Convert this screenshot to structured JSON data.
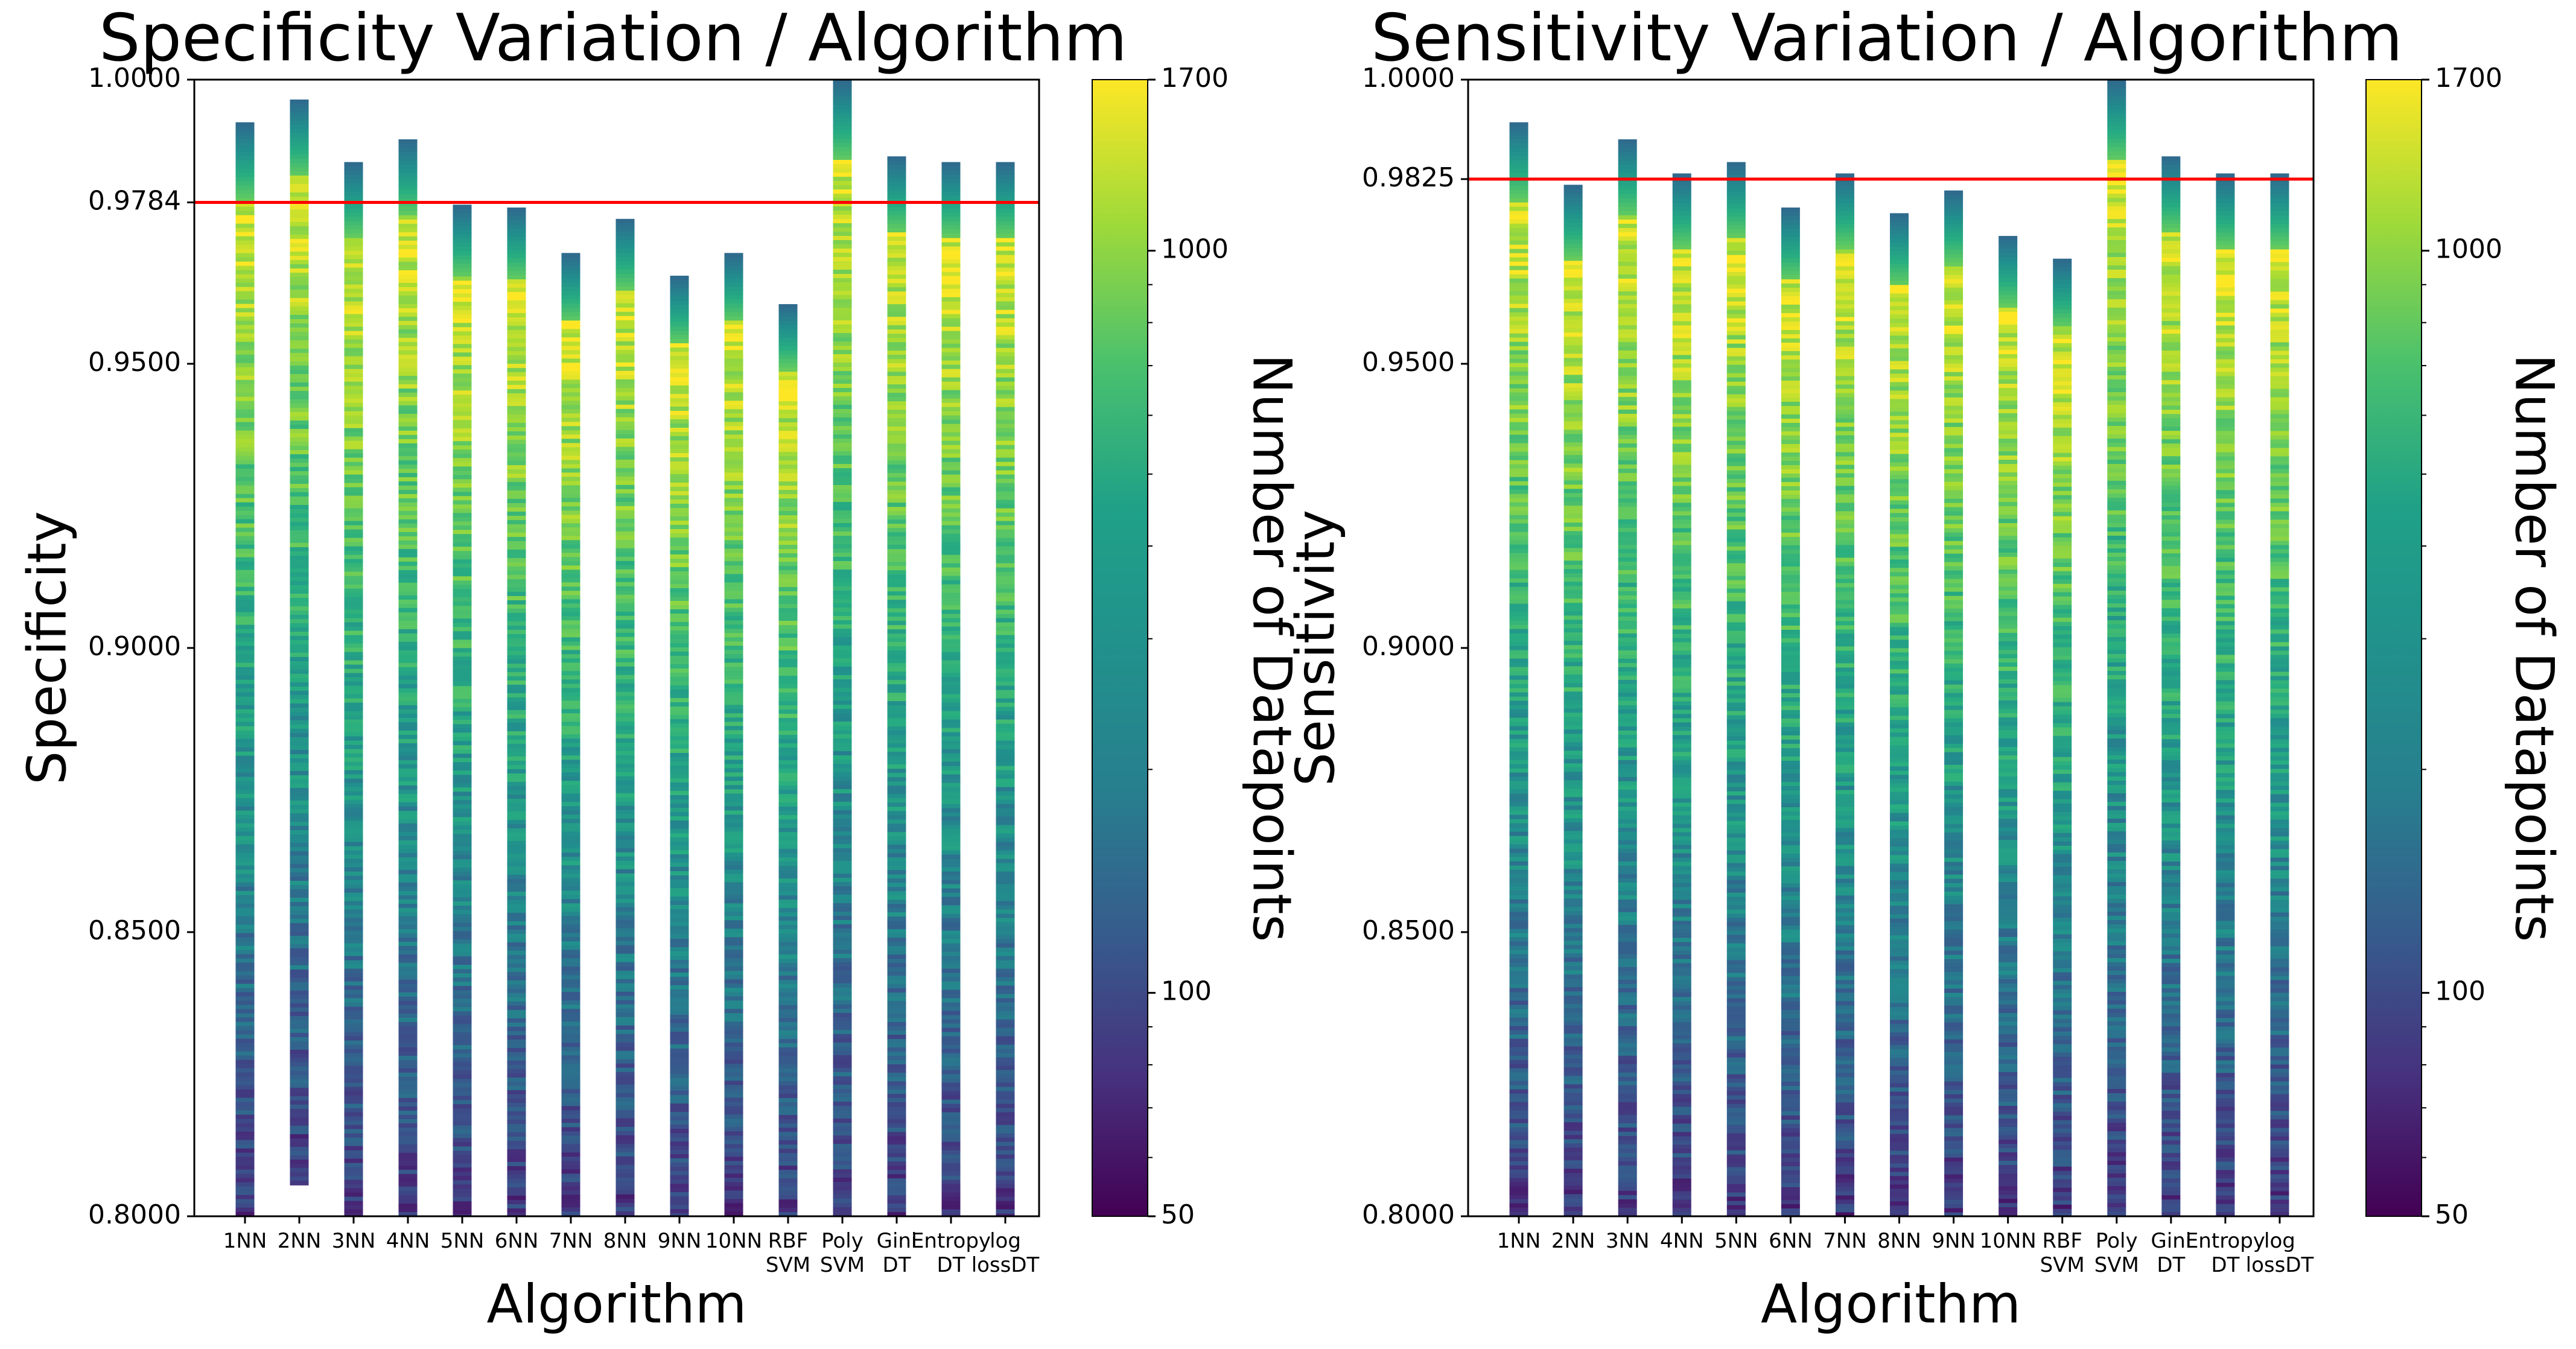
{
  "chart_data": [
    {
      "type": "heatmap",
      "title": "Specificity Variation / Algorithm",
      "xlabel": "Algorithm",
      "ylabel": "Specificity",
      "ylim": [
        0.8,
        1.0
      ],
      "yticks": [
        0.8,
        0.85,
        0.9,
        0.95,
        0.9784,
        1.0
      ],
      "ytick_labels": [
        "0.8000",
        "0.8500",
        "0.9000",
        "0.9500",
        "0.9784",
        "1.0000"
      ],
      "reference_line": 0.9784,
      "reference_line_color": "#ff0000",
      "categories": [
        "1NN",
        "2NN",
        "3NN",
        "4NN",
        "5NN",
        "6NN",
        "7NN",
        "8NN",
        "9NN",
        "10NN",
        "RBF SVM",
        "Poly SVM",
        "Gini DT",
        "Entropy DT",
        "log lossDT"
      ],
      "category_labels": [
        [
          "1NN"
        ],
        [
          "2NN"
        ],
        [
          "3NN"
        ],
        [
          "4NN"
        ],
        [
          "5NN"
        ],
        [
          "6NN"
        ],
        [
          "7NN"
        ],
        [
          "8NN"
        ],
        [
          "9NN"
        ],
        [
          "10NN"
        ],
        [
          "RBF",
          "SVM"
        ],
        [
          "Poly",
          "SVM"
        ],
        [
          "Gini",
          "DT"
        ],
        [
          "Entropy",
          "DT"
        ],
        [
          "log",
          "lossDT"
        ]
      ],
      "bar_ranges": [
        [
          0.8,
          0.9925
        ],
        [
          0.8055,
          0.9965
        ],
        [
          0.8,
          0.9855
        ],
        [
          0.8,
          0.9895
        ],
        [
          0.8,
          0.978
        ],
        [
          0.8,
          0.9775
        ],
        [
          0.8,
          0.9695
        ],
        [
          0.8,
          0.9755
        ],
        [
          0.8,
          0.9655
        ],
        [
          0.8,
          0.9695
        ],
        [
          0.8,
          0.9605
        ],
        [
          0.8,
          1.0
        ],
        [
          0.8,
          0.9865
        ],
        [
          0.8,
          0.9855
        ],
        [
          0.8,
          0.9855
        ]
      ],
      "colorbar": {
        "label": "Number of Datapoints",
        "scale": "log",
        "min": 50,
        "max": 1700,
        "ticks": [
          50,
          100,
          1000,
          1700
        ]
      }
    },
    {
      "type": "heatmap",
      "title": "Sensitivity Variation / Algorithm",
      "xlabel": "Algorithm",
      "ylabel": "Sensitivity",
      "ylim": [
        0.8,
        1.0
      ],
      "yticks": [
        0.8,
        0.85,
        0.9,
        0.95,
        0.9825,
        1.0
      ],
      "ytick_labels": [
        "0.8000",
        "0.8500",
        "0.9000",
        "0.9500",
        "0.9825",
        "1.0000"
      ],
      "reference_line": 0.9825,
      "reference_line_color": "#ff0000",
      "categories": [
        "1NN",
        "2NN",
        "3NN",
        "4NN",
        "5NN",
        "6NN",
        "7NN",
        "8NN",
        "9NN",
        "10NN",
        "RBF SVM",
        "Poly SVM",
        "Gini DT",
        "Entropy DT",
        "log lossDT"
      ],
      "category_labels": [
        [
          "1NN"
        ],
        [
          "2NN"
        ],
        [
          "3NN"
        ],
        [
          "4NN"
        ],
        [
          "5NN"
        ],
        [
          "6NN"
        ],
        [
          "7NN"
        ],
        [
          "8NN"
        ],
        [
          "9NN"
        ],
        [
          "10NN"
        ],
        [
          "RBF",
          "SVM"
        ],
        [
          "Poly",
          "SVM"
        ],
        [
          "Gini",
          "DT"
        ],
        [
          "Entropy",
          "DT"
        ],
        [
          "log",
          "lossDT"
        ]
      ],
      "bar_ranges": [
        [
          0.8,
          0.9925
        ],
        [
          0.8,
          0.9815
        ],
        [
          0.8,
          0.9895
        ],
        [
          0.8,
          0.9835
        ],
        [
          0.8,
          0.9855
        ],
        [
          0.8,
          0.9775
        ],
        [
          0.8,
          0.9835
        ],
        [
          0.8,
          0.9765
        ],
        [
          0.8,
          0.9805
        ],
        [
          0.8,
          0.9725
        ],
        [
          0.8,
          0.9685
        ],
        [
          0.8,
          1.0
        ],
        [
          0.8,
          0.9865
        ],
        [
          0.8,
          0.9835
        ],
        [
          0.8,
          0.9835
        ]
      ],
      "colorbar": {
        "label": "Number of Datapoints",
        "scale": "log",
        "min": 50,
        "max": 1700,
        "ticks": [
          50,
          100,
          1000,
          1700
        ]
      }
    }
  ]
}
